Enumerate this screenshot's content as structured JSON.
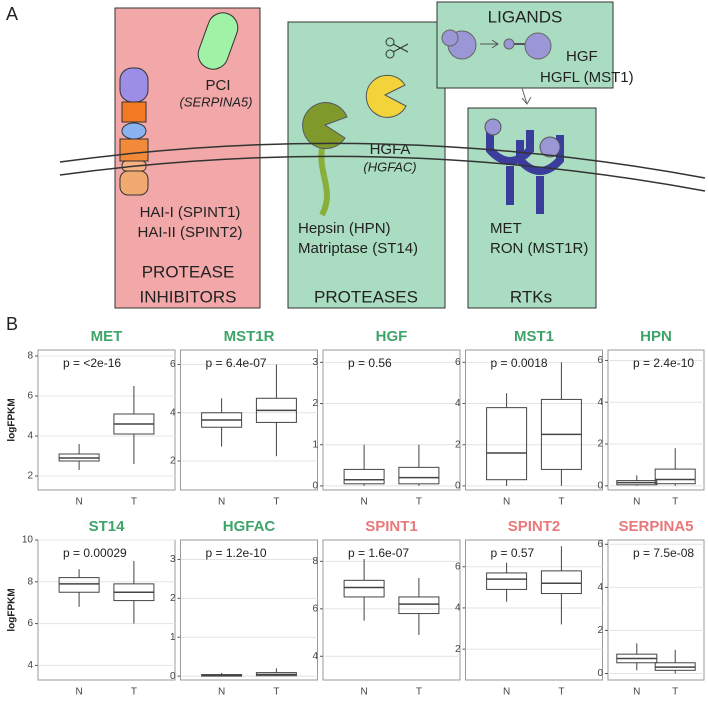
{
  "panel_labels": [
    "A",
    "B"
  ],
  "diagram": {
    "inhibitors": {
      "pci": "PCI",
      "pci_gene": "(SERPINA5)",
      "hai1": "HAI-I (SPINT1)",
      "hai2": "HAI-II (SPINT2)",
      "title_line1": "PROTEASE",
      "title_line2": "INHIBITORS"
    },
    "proteases": {
      "hgfa": "HGFA",
      "hgfa_gene": "(HGFAC)",
      "hepsin": "Hepsin (HPN)",
      "matriptase": "Matriptase (ST14)",
      "title": "PROTEASES"
    },
    "ligands": {
      "title": "LIGANDS",
      "hgf": "HGF",
      "hgfl": "HGFL (MST1)"
    },
    "rtks": {
      "met": "MET",
      "ron": "RON (MST1R)",
      "title": "RTKs"
    }
  },
  "chart_data": [
    {
      "type": "box",
      "title": "MET",
      "title_color": "#3fa46a",
      "ylabel": "logFPKM",
      "annotation": "p = <2e-16",
      "categories": [
        "N",
        "T"
      ],
      "box_color": "#444",
      "boxes": [
        {
          "min": 2.3,
          "q1": 2.75,
          "median": 2.9,
          "q3": 3.1,
          "max": 3.6
        },
        {
          "min": 2.6,
          "q1": 4.1,
          "median": 4.6,
          "q3": 5.1,
          "max": 6.5
        }
      ],
      "ylim": [
        1.3,
        8.3
      ],
      "yticks": [
        2,
        4,
        6,
        8
      ],
      "grid": true
    },
    {
      "type": "box",
      "title": "MST1R",
      "title_color": "#3fa46a",
      "annotation": "p = 6.4e-07",
      "categories": [
        "N",
        "T"
      ],
      "box_color": "#444",
      "boxes": [
        {
          "min": 2.6,
          "q1": 3.4,
          "median": 3.7,
          "q3": 4.0,
          "max": 4.6
        },
        {
          "min": 2.2,
          "q1": 3.6,
          "median": 4.1,
          "q3": 4.6,
          "max": 6.0
        }
      ],
      "ylim": [
        0.8,
        6.6
      ],
      "yticks": [
        2,
        4,
        6
      ],
      "grid": true
    },
    {
      "type": "box",
      "title": "HGF",
      "title_color": "#3fa46a",
      "annotation": "p = 0.56",
      "categories": [
        "N",
        "T"
      ],
      "box_color": "#444",
      "boxes": [
        {
          "min": 0,
          "q1": 0.05,
          "median": 0.15,
          "q3": 0.4,
          "max": 1.0
        },
        {
          "min": 0,
          "q1": 0.05,
          "median": 0.2,
          "q3": 0.45,
          "max": 1.0
        }
      ],
      "ylim": [
        -0.1,
        3.3
      ],
      "yticks": [
        0,
        1,
        2,
        3
      ],
      "grid": true
    },
    {
      "type": "box",
      "title": "MST1",
      "title_color": "#3fa46a",
      "annotation": "p = 0.0018",
      "categories": [
        "N",
        "T"
      ],
      "box_color": "#444",
      "boxes": [
        {
          "min": 0,
          "q1": 0.3,
          "median": 1.6,
          "q3": 3.8,
          "max": 4.5
        },
        {
          "min": 0,
          "q1": 0.8,
          "median": 2.5,
          "q3": 4.2,
          "max": 6.0
        }
      ],
      "ylim": [
        -0.2,
        6.6
      ],
      "yticks": [
        0,
        2,
        4,
        6
      ],
      "grid": true
    },
    {
      "type": "box",
      "title": "HPN",
      "title_color": "#3fa46a",
      "annotation": "p = 2.4e-10",
      "categories": [
        "N",
        "T"
      ],
      "box_color": "#444",
      "boxes": [
        {
          "min": 0,
          "q1": 0.05,
          "median": 0.15,
          "q3": 0.25,
          "max": 0.5
        },
        {
          "min": 0,
          "q1": 0.1,
          "median": 0.3,
          "q3": 0.8,
          "max": 1.8
        }
      ],
      "ylim": [
        -0.2,
        6.5
      ],
      "yticks": [
        0,
        2,
        4,
        6
      ],
      "grid": true
    },
    {
      "type": "box",
      "title": "ST14",
      "title_color": "#3fa46a",
      "ylabel": "logFPKM",
      "annotation": "p = 0.00029",
      "categories": [
        "N",
        "T"
      ],
      "box_color": "#444",
      "boxes": [
        {
          "min": 6.8,
          "q1": 7.5,
          "median": 7.9,
          "q3": 8.2,
          "max": 8.6
        },
        {
          "min": 6.0,
          "q1": 7.1,
          "median": 7.5,
          "q3": 7.9,
          "max": 9.0
        }
      ],
      "ylim": [
        3.3,
        10
      ],
      "yticks": [
        4,
        6,
        8,
        10
      ],
      "grid": true
    },
    {
      "type": "box",
      "title": "HGFAC",
      "title_color": "#3fa46a",
      "annotation": "p = 1.2e-10",
      "categories": [
        "N",
        "T"
      ],
      "box_color": "#444",
      "boxes": [
        {
          "min": 0,
          "q1": 0,
          "median": 0.02,
          "q3": 0.04,
          "max": 0.08
        },
        {
          "min": 0,
          "q1": 0.01,
          "median": 0.04,
          "q3": 0.09,
          "max": 0.2
        }
      ],
      "ylim": [
        -0.1,
        3.5
      ],
      "yticks": [
        0,
        1,
        2,
        3
      ],
      "grid": true
    },
    {
      "type": "box",
      "title": "SPINT1",
      "title_color": "#e8787a",
      "annotation": "p = 1.6e-07",
      "categories": [
        "N",
        "T"
      ],
      "box_color": "#444",
      "boxes": [
        {
          "min": 5.5,
          "q1": 6.5,
          "median": 6.9,
          "q3": 7.2,
          "max": 8.1
        },
        {
          "min": 4.9,
          "q1": 5.8,
          "median": 6.2,
          "q3": 6.5,
          "max": 7.3
        }
      ],
      "ylim": [
        3,
        8.9
      ],
      "yticks": [
        4,
        6,
        8
      ],
      "grid": true
    },
    {
      "type": "box",
      "title": "SPINT2",
      "title_color": "#e8787a",
      "annotation": "p = 0.57",
      "categories": [
        "N",
        "T"
      ],
      "box_color": "#444",
      "boxes": [
        {
          "min": 4.3,
          "q1": 4.9,
          "median": 5.4,
          "q3": 5.7,
          "max": 6.2
        },
        {
          "min": 3.2,
          "q1": 4.7,
          "median": 5.2,
          "q3": 5.8,
          "max": 7.0
        }
      ],
      "ylim": [
        0.5,
        7.3
      ],
      "yticks": [
        2,
        4,
        6
      ],
      "grid": true
    },
    {
      "type": "box",
      "title": "SERPINA5",
      "title_color": "#e8787a",
      "annotation": "p = 7.5e-08",
      "categories": [
        "N",
        "T"
      ],
      "box_color": "#444",
      "boxes": [
        {
          "min": 0.15,
          "q1": 0.5,
          "median": 0.7,
          "q3": 0.9,
          "max": 1.4
        },
        {
          "min": 0,
          "q1": 0.15,
          "median": 0.3,
          "q3": 0.5,
          "max": 1.1
        }
      ],
      "ylim": [
        -0.3,
        6.2
      ],
      "yticks": [
        0,
        2,
        4,
        6
      ],
      "grid": true
    }
  ]
}
